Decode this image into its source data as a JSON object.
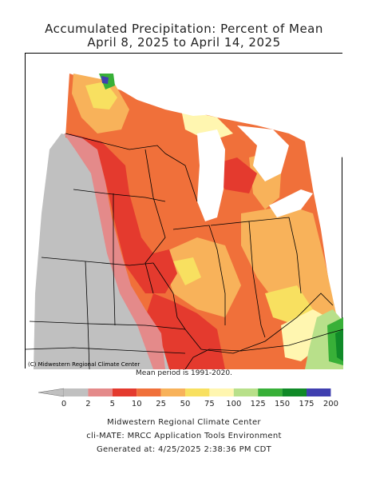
{
  "title": {
    "line1": "Accumulated Precipitation: Percent of Mean",
    "line2": "April 8, 2025 to April 14, 2025"
  },
  "map": {
    "credit": "(C) Midwestern Regional Climate Center",
    "colors": {
      "nodata": "#c0c0c0",
      "c0_2": "#c0c0c0",
      "c2_5": "#e48a8a",
      "c5_10": "#e43a2e",
      "c10_25": "#f0703a",
      "c25_50": "#f8b25a",
      "c50_75": "#f8e060",
      "c75_100": "#fff6b0",
      "c100_125": "#b8e08a",
      "c125_150": "#38b038",
      "c150_175": "#108a28",
      "c175_200": "#4040b0",
      "water": "#ffffff",
      "border": "#000000"
    }
  },
  "mean_note": "Mean period is 1991-2020.",
  "legend": {
    "labels": [
      "0",
      "2",
      "5",
      "10",
      "25",
      "50",
      "75",
      "100",
      "125",
      "150",
      "175",
      "200"
    ],
    "colors": [
      "#c0c0c0",
      "#e48a8a",
      "#e43a2e",
      "#f0703a",
      "#f8b25a",
      "#f8e060",
      "#fff6b0",
      "#b8e08a",
      "#38b038",
      "#108a28",
      "#4040b0"
    ]
  },
  "footer": {
    "line1": "Midwestern Regional Climate Center",
    "line2": "cli-MATE: MRCC Application Tools Environment",
    "line3": "Generated at: 4/25/2025 2:38:36 PM CDT"
  }
}
